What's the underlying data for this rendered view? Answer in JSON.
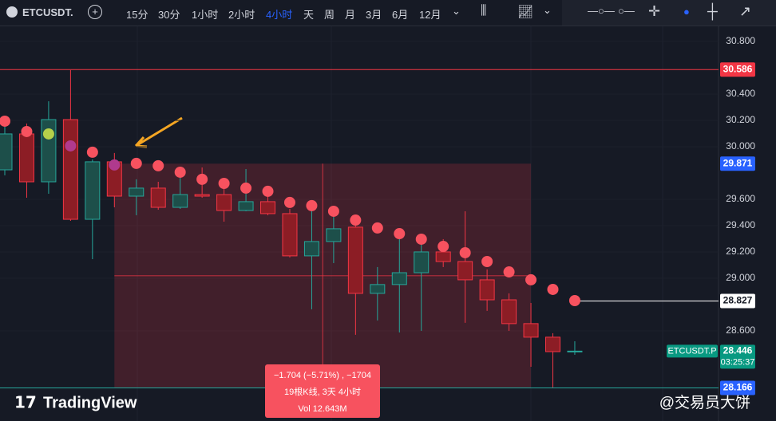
{
  "toolbar": {
    "symbol": "ETCUSDT.",
    "intervals": [
      "15分",
      "30分",
      "1小时",
      "2小时",
      "4小时",
      "天",
      "周",
      "月",
      "3月",
      "6月",
      "12月"
    ],
    "active_interval": 4
  },
  "chart_data": {
    "type": "candlestick",
    "open": [
      29.824,
      30.097,
      29.733,
      30.206,
      29.448,
      29.885,
      29.624,
      29.685,
      29.539,
      29.636,
      29.636,
      29.515,
      29.582,
      29.491,
      29.17,
      29.279,
      29.388,
      28.885,
      28.952,
      29.042,
      29.2,
      29.127,
      28.988,
      28.836,
      28.655,
      28.552,
      28.442
    ],
    "high": [
      30.206,
      30.176,
      30.345,
      30.582,
      29.903,
      29.952,
      29.752,
      29.733,
      29.83,
      29.842,
      29.733,
      29.83,
      29.661,
      29.527,
      29.539,
      29.479,
      29.4,
      29.085,
      29.297,
      29.339,
      29.297,
      29.509,
      29.067,
      28.885,
      28.812,
      28.582,
      28.521
    ],
    "low": [
      29.782,
      29.612,
      29.642,
      29.436,
      29.145,
      29.539,
      29.479,
      29.521,
      29.527,
      29.612,
      29.43,
      29.509,
      29.479,
      29.158,
      28.764,
      29.115,
      28.57,
      28.679,
      28.588,
      28.6,
      29.085,
      28.661,
      28.752,
      28.6,
      28.327,
      28.17,
      28.418
    ],
    "close": [
      30.097,
      29.733,
      30.206,
      29.448,
      29.885,
      29.624,
      29.685,
      29.539,
      29.636,
      29.624,
      29.515,
      29.582,
      29.491,
      29.17,
      29.279,
      29.376,
      28.885,
      28.952,
      29.042,
      29.2,
      29.127,
      28.988,
      28.836,
      28.655,
      28.552,
      28.442,
      28.446
    ],
    "up_color": "#26a69a",
    "down_color": "#f23645",
    "indicator": {
      "values": [
        30.194,
        30.115,
        30.097,
        30.006,
        29.958,
        29.861,
        29.873,
        29.855,
        29.806,
        29.752,
        29.721,
        29.685,
        29.661,
        29.576,
        29.552,
        29.509,
        29.442,
        29.382,
        29.339,
        29.297,
        29.242,
        29.194,
        29.127,
        29.048,
        28.988,
        28.915,
        28.83
      ],
      "colors": [
        "#f7525f",
        "#f7525f",
        "#b5d04a",
        "#b03a8e",
        "#f7525f",
        "#b03a8e",
        "#f7525f",
        "#f7525f",
        "#f7525f",
        "#f7525f",
        "#f7525f",
        "#f7525f",
        "#f7525f",
        "#f7525f",
        "#f7525f",
        "#f7525f",
        "#f7525f",
        "#f7525f",
        "#f7525f",
        "#f7525f",
        "#f7525f",
        "#f7525f",
        "#f7525f",
        "#f7525f",
        "#f7525f",
        "#f7525f",
        "#f7525f"
      ]
    },
    "ylim": [
      28.036,
      30.921
    ],
    "yticks": [
      {
        "value": 30.8,
        "label": "30.800"
      },
      {
        "value": 30.4,
        "label": "30.400"
      },
      {
        "value": 30.2,
        "label": "30.200"
      },
      {
        "value": 30.0,
        "label": "30.000"
      },
      {
        "value": 29.6,
        "label": "29.600"
      },
      {
        "value": 29.4,
        "label": "29.400"
      },
      {
        "value": 29.2,
        "label": "29.200"
      },
      {
        "value": 29.0,
        "label": "29.000"
      },
      {
        "value": 28.6,
        "label": "28.600"
      }
    ],
    "grid": true,
    "price_lines": {
      "high_line": 30.586,
      "measure_top": 29.871,
      "dot_last": 28.827,
      "last": 28.446,
      "measure_bottom": 28.166
    },
    "last_symbol": "ETCUSDT.P",
    "countdown": "03:25:37",
    "measure": {
      "lines": [
        "−1.704 (−5.71%) , −1704",
        "19根K线, 3天 4小时",
        "Vol 12.643M"
      ]
    },
    "watermark": "TradingView",
    "author": "@交易员大饼"
  }
}
